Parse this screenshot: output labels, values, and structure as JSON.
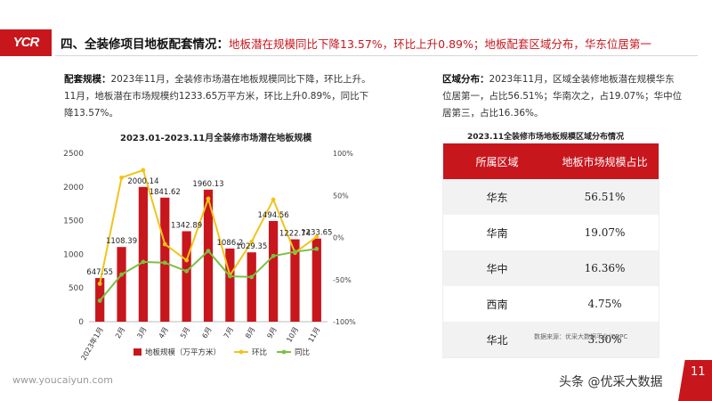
{
  "logo": "YCR",
  "header": {
    "lead": "四、全装修项目地板配套情况：",
    "rest": "地板潜在规模同比下降13.57%，环比上升0.89%；地板配套区域分布，华东位居第一"
  },
  "left_paragraph": {
    "key": "配套规模：",
    "text": "2023年11月，全装修市场潜在地板规模同比下降，环比上升。11月，地板潜在市场规模约1233.65万平方米，环比上升0.89%，同比下降13.57%。"
  },
  "right_paragraph": {
    "key": "区域分布：",
    "text": "2023年11月，区域全装修地板潜在规模华东位居第一，占比56.51%；华南次之，占19.07%；华中位居第三，占比16.36%。"
  },
  "chart_data": {
    "type": "bar",
    "title": "2023.01-2023.11月全装修市场潜在地板规模",
    "categories": [
      "2023年1月",
      "2月",
      "3月",
      "4月",
      "5月",
      "6月",
      "7月",
      "8月",
      "9月",
      "10月",
      "11月"
    ],
    "series": [
      {
        "name": "地板规模（万平方米）",
        "type": "bar",
        "axis": "left",
        "color": "#c8161d",
        "values": [
          647.55,
          1108.39,
          2000.14,
          1841.62,
          1342.89,
          1960.13,
          1086.2,
          1029.35,
          1494.56,
          1222.74,
          1233.65
        ]
      },
      {
        "name": "环比",
        "type": "line",
        "axis": "right",
        "color": "#f0c419",
        "values": [
          -55,
          71,
          80,
          -8,
          -27,
          46,
          -45,
          -5,
          45,
          -18,
          0.89
        ]
      },
      {
        "name": "同比",
        "type": "line",
        "axis": "right",
        "color": "#7ac143",
        "values": [
          -75,
          -44,
          -29,
          -30,
          -40,
          -16,
          -46,
          -47,
          -22,
          -17,
          -13.57
        ]
      }
    ],
    "left_axis": {
      "min": 0,
      "max": 2500,
      "ticks": [
        "0",
        "500",
        "1000",
        "1500",
        "2000",
        "2500"
      ]
    },
    "right_axis": {
      "min": -100,
      "max": 100,
      "ticks": [
        "-100%",
        "-50%",
        "0%",
        "50%",
        "100%"
      ]
    },
    "legend_position": "bottom",
    "grid": false
  },
  "region_table": {
    "title": "2023.11全装修市场地板规模区域分布情况",
    "headers": [
      "所属区域",
      "地板市场规模占比"
    ],
    "rows": [
      [
        "华东",
        "56.51%"
      ],
      [
        "华南",
        "19.07%"
      ],
      [
        "华中",
        "16.36%"
      ],
      [
        "西南",
        "4.75%"
      ],
      [
        "华北",
        "3.30%"
      ]
    ],
    "source": "数据来源：优采大数据平台|CRPC"
  },
  "footer": {
    "website": "www.youcaiyun.com",
    "tag": "头条 @优采大数据",
    "page": "11"
  }
}
